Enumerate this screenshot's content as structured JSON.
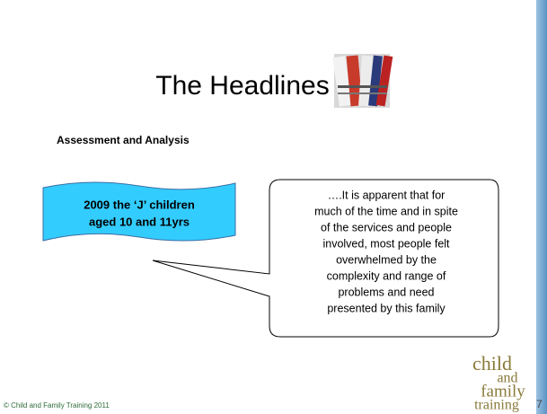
{
  "slide": {
    "title": "The Headlines",
    "subheading": "Assessment and Analysis",
    "banner": {
      "lines": [
        "2009 the ‘J’ children",
        "aged 10 and 11yrs"
      ]
    },
    "callout": {
      "lines": [
        "….It is apparent that for",
        "much of the time and in spite",
        "of the services and people",
        "involved, most people felt",
        "overwhelmed by the",
        "complexity and range of",
        "problems and need",
        "presented by this family"
      ]
    },
    "logo": {
      "words": [
        "child",
        "and",
        "family",
        "training"
      ]
    },
    "footer": "© Child and Family Training 2011",
    "slide_number": "7"
  }
}
